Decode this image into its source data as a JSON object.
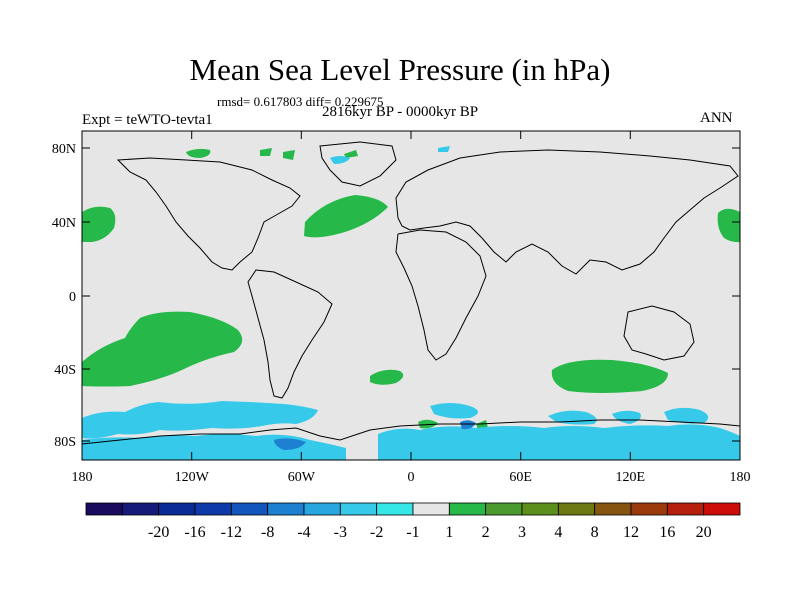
{
  "header": {
    "title": "Mean Sea Level Pressure (in hPa)",
    "stats": "rmsd= 0.617803 diff= 0.229675",
    "period": "2816kyr BP - 0000kyr BP",
    "experiment": "Expt = teWTO-tevta1",
    "season": "ANN"
  },
  "map": {
    "background_color": "#e6e6e6",
    "lat_labels": [
      "80N",
      "40N",
      "0",
      "40S",
      "80S"
    ],
    "lon_labels": [
      "180",
      "120W",
      "60W",
      "0",
      "60E",
      "120E",
      "180"
    ]
  },
  "colorbar": {
    "colors": [
      "#1a0a5e",
      "#161b7a",
      "#0a2a96",
      "#0d3aa8",
      "#1155bd",
      "#1d80d0",
      "#27a6df",
      "#36c9ea",
      "#35e6e6",
      "#e6e6e6",
      "#27b84a",
      "#4b9a2e",
      "#5d8f1c",
      "#6d7810",
      "#86550f",
      "#9b3a0d",
      "#b61f0e",
      "#cc0d0a"
    ],
    "labels": [
      "-20",
      "-16",
      "-12",
      "-8",
      "-4",
      "-3",
      "-2",
      "-1",
      "1",
      "2",
      "3",
      "4",
      "8",
      "12",
      "16",
      "20"
    ]
  },
  "legend_colors": {
    "positive": "#27b84a",
    "negative": "#36c9ea",
    "strong_negative": "#1d80d0",
    "coastline": "#000000"
  }
}
